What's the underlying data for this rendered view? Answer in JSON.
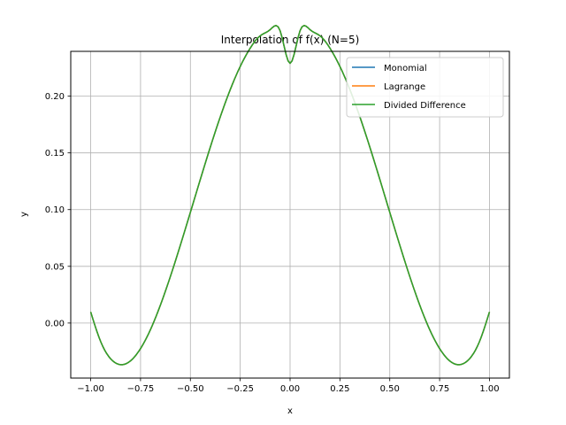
{
  "chart_data": {
    "type": "line",
    "title": "Interpolation of f(x) (N=5)",
    "xlabel": "x",
    "ylabel": "y",
    "xlim": [
      -1.1,
      1.1
    ],
    "ylim": [
      -0.0485,
      0.2395
    ],
    "grid": true,
    "legend_position": "top-right",
    "x_ticks": [
      -1.0,
      -0.75,
      -0.5,
      -0.25,
      0.0,
      0.25,
      0.5,
      0.75,
      1.0
    ],
    "x_tick_labels": [
      "−1.00",
      "−0.75",
      "−0.50",
      "−0.25",
      "0.00",
      "0.25",
      "0.50",
      "0.75",
      "1.00"
    ],
    "y_ticks": [
      0.0,
      0.05,
      0.1,
      0.15,
      0.2
    ],
    "y_tick_labels": [
      "0.00",
      "0.05",
      "0.10",
      "0.15",
      "0.20"
    ],
    "x": [
      -1.0,
      -0.95,
      -0.9,
      -0.85,
      -0.8,
      -0.75,
      -0.7,
      -0.65,
      -0.6,
      -0.55,
      -0.5,
      -0.45,
      -0.4,
      -0.35,
      -0.3,
      -0.25,
      -0.2,
      -0.15,
      -0.1,
      -0.05,
      0.0,
      0.05,
      0.1,
      0.15,
      0.2,
      0.25,
      0.3,
      0.35,
      0.4,
      0.45,
      0.5,
      0.55,
      0.6,
      0.65,
      0.7,
      0.75,
      0.8,
      0.85,
      0.9,
      0.95,
      1.0
    ],
    "series": [
      {
        "name": "Monomial",
        "color": "#1f77b4",
        "values": [
          0.0098,
          -0.0163,
          -0.0315,
          -0.0367,
          -0.0333,
          -0.0225,
          -0.0057,
          0.016,
          0.0412,
          0.0688,
          0.0976,
          0.1267,
          0.1551,
          0.1818,
          0.2058,
          0.2262,
          0.2423,
          0.2532,
          0.2586,
          0.2577,
          0.2289,
          0.2577,
          0.2586,
          0.2532,
          0.2423,
          0.2262,
          0.2058,
          0.1818,
          0.1551,
          0.1267,
          0.0976,
          0.0688,
          0.0412,
          0.016,
          -0.0057,
          -0.0225,
          -0.0333,
          -0.0367,
          -0.0315,
          -0.0163,
          0.0098
        ]
      },
      {
        "name": "Lagrange",
        "color": "#ff7f0e",
        "values": [
          0.0098,
          -0.0163,
          -0.0315,
          -0.0367,
          -0.0333,
          -0.0225,
          -0.0057,
          0.016,
          0.0412,
          0.0688,
          0.0976,
          0.1267,
          0.1551,
          0.1818,
          0.2058,
          0.2262,
          0.2423,
          0.2532,
          0.2586,
          0.2577,
          0.2289,
          0.2577,
          0.2586,
          0.2532,
          0.2423,
          0.2262,
          0.2058,
          0.1818,
          0.1551,
          0.1267,
          0.0976,
          0.0688,
          0.0412,
          0.016,
          -0.0057,
          -0.0225,
          -0.0333,
          -0.0367,
          -0.0315,
          -0.0163,
          0.0098
        ]
      },
      {
        "name": "Divided Difference",
        "color": "#2ca02c",
        "values": [
          0.0098,
          -0.0163,
          -0.0315,
          -0.0367,
          -0.0333,
          -0.0225,
          -0.0057,
          0.016,
          0.0412,
          0.0688,
          0.0976,
          0.1267,
          0.1551,
          0.1818,
          0.2058,
          0.2262,
          0.2423,
          0.2532,
          0.2586,
          0.2577,
          0.2289,
          0.2577,
          0.2586,
          0.2532,
          0.2423,
          0.2262,
          0.2058,
          0.1818,
          0.1551,
          0.1267,
          0.0976,
          0.0688,
          0.0412,
          0.016,
          -0.0057,
          -0.0225,
          -0.0333,
          -0.0367,
          -0.0315,
          -0.0163,
          0.0098
        ]
      }
    ]
  }
}
